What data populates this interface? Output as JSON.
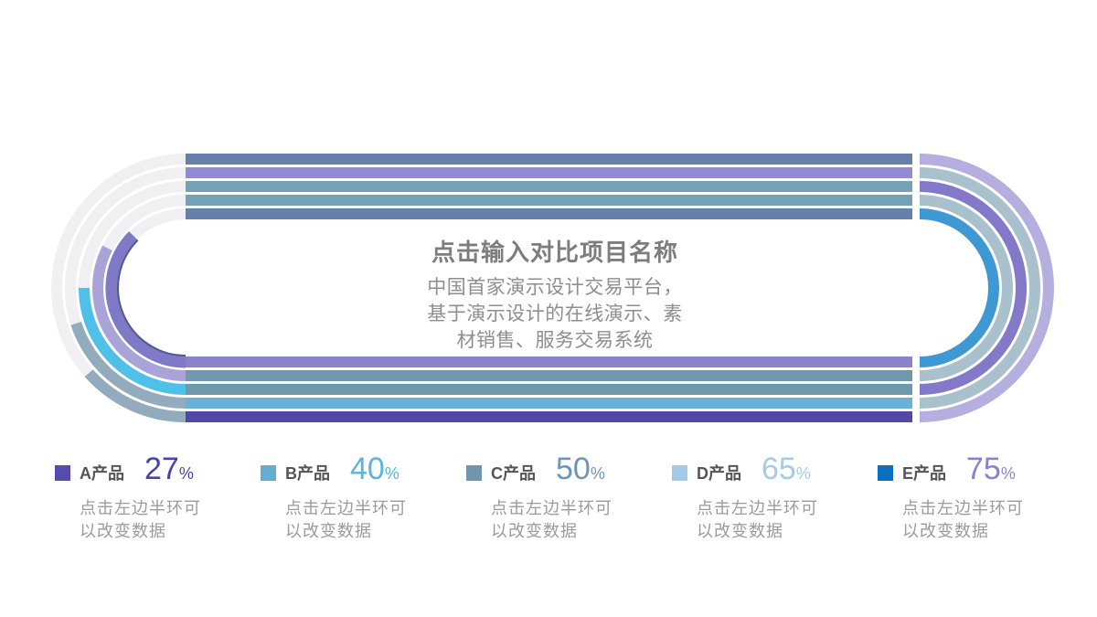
{
  "center": {
    "title": "点击输入对比项目名称",
    "body_lines": [
      "中国首家演示设计交易平台，",
      "基于演示设计的在线演示、素",
      "材销售、服务交易系统"
    ]
  },
  "chart_data": {
    "type": "pie",
    "subtype": "stadium racetrack radial-progress, 5 concentric lanes (A outermost, E innermost)",
    "title": "点击输入对比项目名称",
    "unit": "%",
    "max": 100,
    "categories": [
      "A产品",
      "B产品",
      "C产品",
      "D产品",
      "E产品"
    ],
    "values": [
      27,
      40,
      50,
      65,
      75
    ],
    "fill_rule": "left half-ring colored arc sweeps value% of 180° clockwise from the bottom junction; remainder of left half-ring is light gray; right half-ring and straights are fully colored",
    "track_color": "#f0eff2",
    "lanes": [
      {
        "id": "A",
        "label": "A产品",
        "value": 27,
        "left_arc_color": "#92abbd",
        "right_arc_color": "#b4afdf",
        "top_bar_color": "#6780ab",
        "bottom_bar_color": "#5148a8"
      },
      {
        "id": "B",
        "label": "B产品",
        "value": 40,
        "left_arc_color": "#92abbd",
        "right_arc_color": "#a9c0cd",
        "top_bar_color": "#918bd6",
        "bottom_bar_color": "#68b2d8"
      },
      {
        "id": "C",
        "label": "C产品",
        "value": 50,
        "left_arc_color": "#4fc0e8",
        "right_arc_color": "#8478c8",
        "top_bar_color": "#74a3b8",
        "bottom_bar_color": "#6f99ad"
      },
      {
        "id": "D",
        "label": "D产品",
        "value": 65,
        "left_arc_color": "#a9a3d8",
        "right_arc_color": "#a9c0cd",
        "top_bar_color": "#74a3b8",
        "bottom_bar_color": "#6f99ad"
      },
      {
        "id": "E",
        "label": "E产品",
        "value": 75,
        "left_arc_color": "#8079c6",
        "left_arc_edge_color": "#4e5a96",
        "right_arc_color": "#3e98d4",
        "top_bar_color": "#6780ab",
        "bottom_bar_color": "#8a84cd"
      }
    ]
  },
  "legend": {
    "items": [
      {
        "label": "A产品",
        "value": "27",
        "unit": "%",
        "swatch_color": "#544cae",
        "value_color": "#4843ae",
        "note_line1": "点击左边半环可",
        "note_line2": "以改变数据"
      },
      {
        "label": "B产品",
        "value": "40",
        "unit": "%",
        "swatch_color": "#64aed6",
        "value_color": "#5ab4dc",
        "note_line1": "点击左边半环可",
        "note_line2": "以改变数据"
      },
      {
        "label": "C产品",
        "value": "50",
        "unit": "%",
        "swatch_color": "#6f96ac",
        "value_color": "#7094b8",
        "note_line1": "点击左边半环可",
        "note_line2": "以改变数据"
      },
      {
        "label": "D产品",
        "value": "65",
        "unit": "%",
        "swatch_color": "#a3c9e8",
        "value_color": "#a6cbe8",
        "note_line1": "点击左边半环可",
        "note_line2": "以改变数据"
      },
      {
        "label": "E产品",
        "value": "75",
        "unit": "%",
        "swatch_color": "#0b6fc0",
        "value_color": "#8a82cc",
        "note_line1": "点击左边半环可",
        "note_line2": "以改变数据"
      }
    ]
  }
}
